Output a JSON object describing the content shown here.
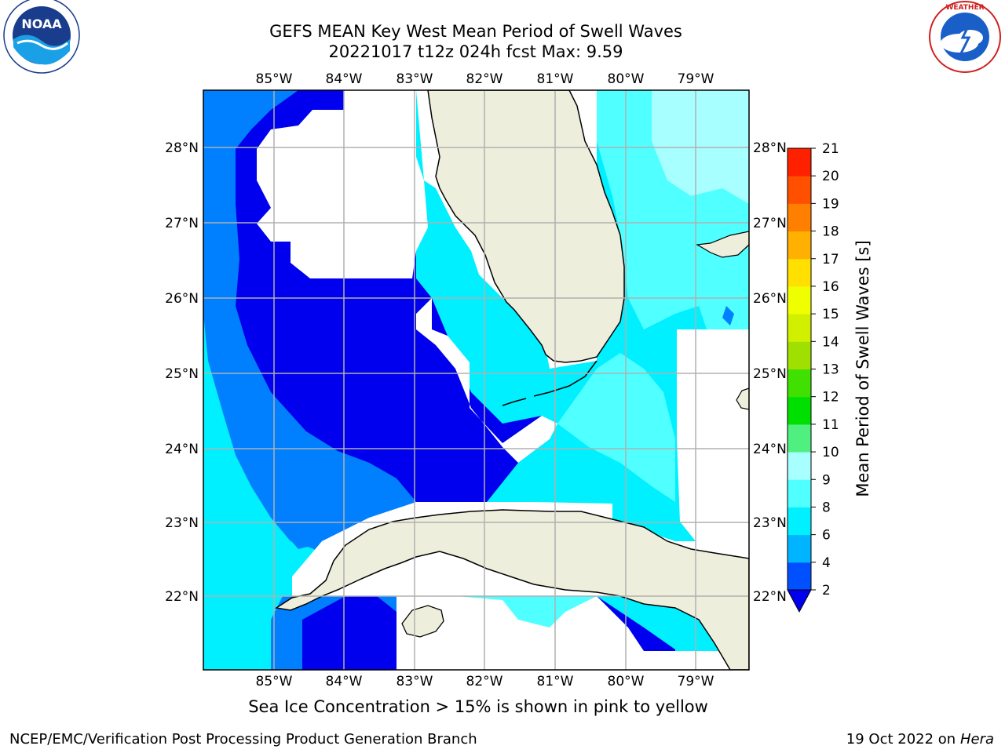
{
  "header": {
    "title_line1": "GEFS MEAN Key West Mean Period of Swell Waves",
    "title_line2": "20221017 t12z 024h fcst   Max: 9.59"
  },
  "logos": {
    "noaa_text": "NOAA",
    "noaa_ring_text": "NATIONAL OCEANIC AND ATMOSPHERIC ADMINISTRATION · U.S. DEPARTMENT OF COMMERCE",
    "nws_ring_text": "NATIONAL WEATHER SERVICE"
  },
  "map": {
    "lon_labels": [
      "85°W",
      "84°W",
      "83°W",
      "82°W",
      "81°W",
      "80°W",
      "79°W"
    ],
    "lat_labels": [
      "28°N",
      "27°N",
      "26°N",
      "25°N",
      "24°N",
      "23°N",
      "22°N"
    ],
    "colors": {
      "land": "#eeeedd",
      "no_data": "#ffffff",
      "grid": "#b0b0b0",
      "coast": "#000000"
    }
  },
  "colorbar": {
    "label": "Mean Period of Swell Waves [s]",
    "ticks": [
      "2",
      "4",
      "6",
      "8",
      "9",
      "10",
      "11",
      "12",
      "13",
      "14",
      "15",
      "16",
      "17",
      "18",
      "19",
      "20",
      "21"
    ],
    "colors": [
      "#0050ff",
      "#00b4ff",
      "#00f0ff",
      "#50ffff",
      "#a8ffff",
      "#50f080",
      "#00e000",
      "#40e000",
      "#a0e000",
      "#d0f000",
      "#f0ff00",
      "#ffe000",
      "#ffb000",
      "#ff8000",
      "#ff5000",
      "#ff2000"
    ],
    "under_color": "#0000ee"
  },
  "caption": "Sea Ice Concentration > 15% is shown in pink to yellow",
  "footer": {
    "left": "NCEP/EMC/Verification Post Processing Product Generation Branch",
    "right_prefix": "19 Oct 2022 on ",
    "right_host": "Hera"
  }
}
